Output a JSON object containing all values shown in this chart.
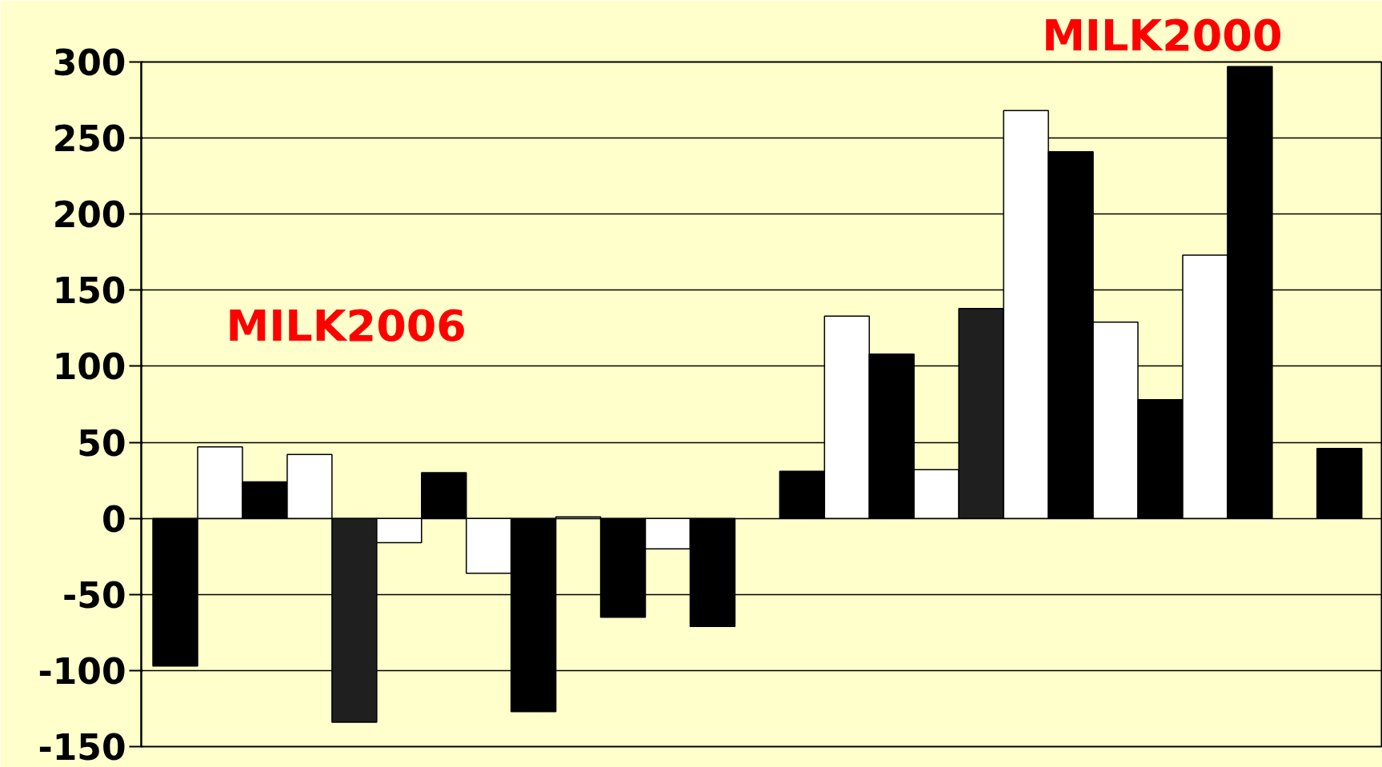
{
  "chart_data": {
    "type": "bar",
    "categories": [
      null,
      null,
      null,
      null,
      null,
      null,
      null,
      null,
      null,
      null,
      null,
      null,
      null,
      null,
      null,
      null,
      null,
      null,
      null,
      null,
      null,
      null,
      null,
      null,
      null,
      null,
      null
    ],
    "values": [
      -97,
      47,
      24,
      42,
      -134,
      -16,
      30,
      -36,
      -127,
      1,
      -65,
      -20,
      -71,
      null,
      31,
      133,
      108,
      32,
      138,
      268,
      241,
      129,
      78,
      173,
      297,
      null,
      46
    ],
    "colors": [
      "#000000",
      "#ffffff",
      "#000000",
      "#ffffff",
      "#1f1f1f",
      "#ffffff",
      "#000000",
      "#ffffff",
      "#000000",
      "#ffffff",
      "#000000",
      "#ffffff",
      "#000000",
      "#000000",
      "#000000",
      "#ffffff",
      "#000000",
      "#ffffff",
      "#1f1f1f",
      "#ffffff",
      "#000000",
      "#ffffff",
      "#000000",
      "#ffffff",
      "#000000",
      "#ffffff",
      "#000000"
    ],
    "ylim": [
      -150,
      300
    ],
    "yticks": [
      -150,
      -100,
      -50,
      0,
      50,
      100,
      150,
      200,
      250,
      300
    ],
    "grid": "y",
    "tick_labels": "y",
    "annotations": [
      "MILK2006",
      "MILK2000"
    ]
  }
}
